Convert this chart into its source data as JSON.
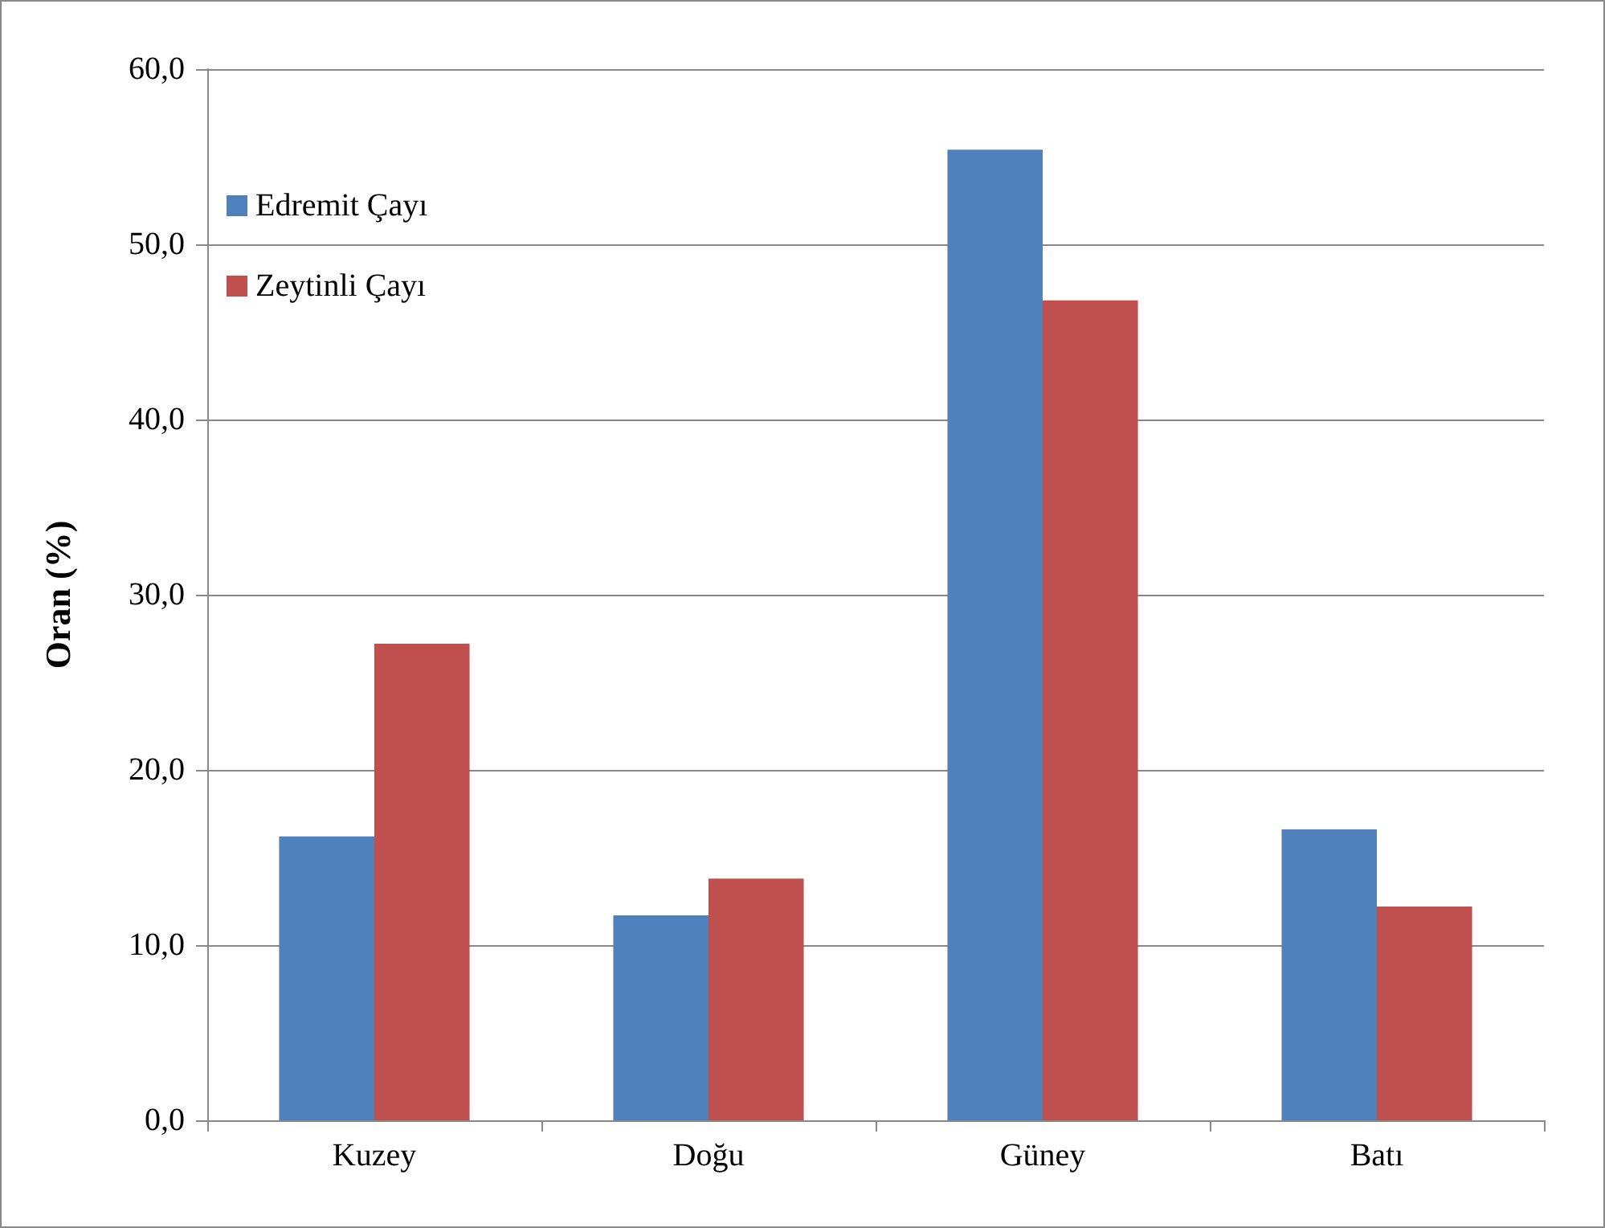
{
  "chart_data": {
    "type": "bar",
    "ylabel": "Oran (%)",
    "categories": [
      "Kuzey",
      "Doğu",
      "Güney",
      "Batı"
    ],
    "series": [
      {
        "name": "Edremit Çayı",
        "color": "#4f81bd",
        "values": [
          16.2,
          11.7,
          55.4,
          16.6
        ]
      },
      {
        "name": "Zeytinli Çayı",
        "color": "#c0504d",
        "values": [
          27.2,
          13.8,
          46.8,
          12.2
        ]
      }
    ],
    "ylim": [
      0,
      60
    ],
    "yticks": [
      {
        "value": 0,
        "label": "0,0"
      },
      {
        "value": 10,
        "label": "10,0"
      },
      {
        "value": 20,
        "label": "20,0"
      },
      {
        "value": 30,
        "label": "30,0"
      },
      {
        "value": 40,
        "label": "40,0"
      },
      {
        "value": 50,
        "label": "50,0"
      },
      {
        "value": 60,
        "label": "60,0"
      }
    ],
    "grid": "y",
    "legend": "top left"
  }
}
